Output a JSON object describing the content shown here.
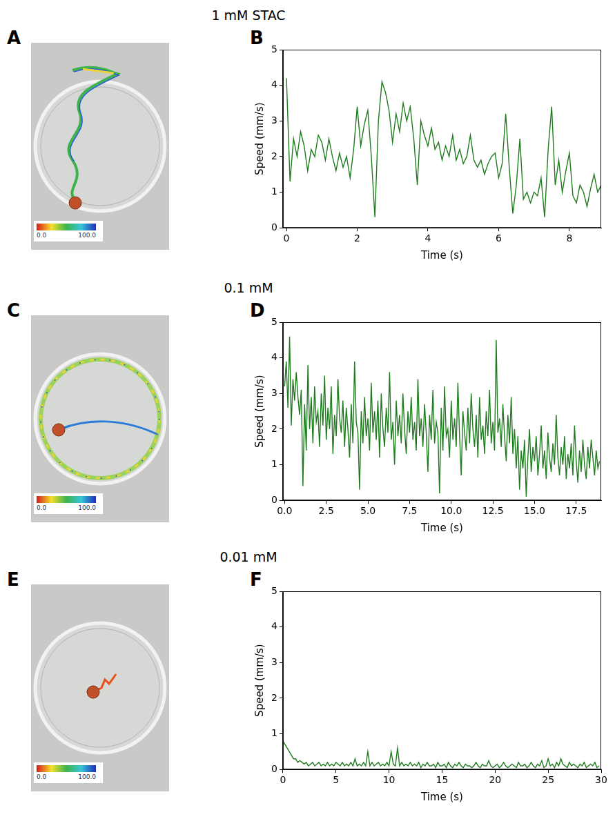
{
  "chart_data": [
    {
      "type": "line",
      "panel": "B",
      "title": "1 mM STAC",
      "x_label": "Time (s)",
      "y_label": "Speed (mm/s)",
      "color": "#1e7b1e",
      "grid": false,
      "xlim": [
        -0.1,
        8.9
      ],
      "xticks": [
        0,
        2,
        4,
        6,
        8
      ],
      "ylim": [
        0,
        5
      ],
      "yticks": [
        0,
        1,
        2,
        3,
        4,
        5
      ],
      "x": [
        0,
        0.1,
        0.2,
        0.3,
        0.4,
        0.5,
        0.6,
        0.7,
        0.8,
        0.9,
        1,
        1.1,
        1.2,
        1.3,
        1.4,
        1.5,
        1.6,
        1.7,
        1.8,
        1.9,
        2,
        2.1,
        2.2,
        2.3,
        2.4,
        2.5,
        2.6,
        2.7,
        2.8,
        2.9,
        3,
        3.1,
        3.2,
        3.3,
        3.4,
        3.5,
        3.6,
        3.7,
        3.8,
        3.9,
        4,
        4.1,
        4.2,
        4.3,
        4.4,
        4.5,
        4.6,
        4.7,
        4.8,
        4.9,
        5,
        5.1,
        5.2,
        5.3,
        5.4,
        5.5,
        5.6,
        5.7,
        5.8,
        5.9,
        6,
        6.1,
        6.2,
        6.3,
        6.4,
        6.5,
        6.6,
        6.7,
        6.8,
        6.9,
        7,
        7.1,
        7.2,
        7.3,
        7.4,
        7.5,
        7.6,
        7.7,
        7.8,
        7.9,
        8,
        8.1,
        8.2,
        8.3,
        8.4,
        8.5,
        8.6,
        8.7,
        8.8,
        8.9
      ],
      "values": [
        4.2,
        1.3,
        2.5,
        2.0,
        2.7,
        2.3,
        1.6,
        2.2,
        2.0,
        2.6,
        2.4,
        1.9,
        2.5,
        2.0,
        1.6,
        2.1,
        1.7,
        2.0,
        1.4,
        2.2,
        3.4,
        2.3,
        2.9,
        3.3,
        2.0,
        0.3,
        3.0,
        4.1,
        3.8,
        3.3,
        2.4,
        3.2,
        2.7,
        3.5,
        3.0,
        3.4,
        2.5,
        1.2,
        3.0,
        2.6,
        2.3,
        2.8,
        2.2,
        2.4,
        1.9,
        2.3,
        2.0,
        2.6,
        1.9,
        2.2,
        1.8,
        2.0,
        2.6,
        1.9,
        1.7,
        1.9,
        1.5,
        1.8,
        2.0,
        2.1,
        1.4,
        1.8,
        3.2,
        1.7,
        0.4,
        1.2,
        2.5,
        0.8,
        1.0,
        0.7,
        1.0,
        0.9,
        1.4,
        0.3,
        2.2,
        3.4,
        1.2,
        1.9,
        1.0,
        1.6,
        2.1,
        0.9,
        0.7,
        1.2,
        1.0,
        0.6,
        1.1,
        1.5,
        1.0,
        1.2
      ]
    },
    {
      "type": "line",
      "panel": "D",
      "title": "0.1 mM",
      "x_label": "Time (s)",
      "y_label": "Speed (mm/s)",
      "color": "#1e7b1e",
      "grid": false,
      "xlim": [
        -0.1,
        19
      ],
      "xticks": [
        {
          "value": 0,
          "label": "0.0"
        },
        2.5,
        {
          "value": 5,
          "label": "5.0"
        },
        7.5,
        {
          "value": 10,
          "label": "10.0"
        },
        12.5,
        {
          "value": 15,
          "label": "15.0"
        },
        17.5
      ],
      "ylim": [
        0,
        5
      ],
      "yticks": [
        0,
        1,
        2,
        3,
        4,
        5
      ],
      "x": [
        0,
        0.1,
        0.2,
        0.3,
        0.4,
        0.5,
        0.6,
        0.7,
        0.8,
        0.9,
        1,
        1.1,
        1.2,
        1.3,
        1.4,
        1.5,
        1.6,
        1.7,
        1.8,
        1.9,
        2,
        2.1,
        2.2,
        2.3,
        2.4,
        2.5,
        2.6,
        2.7,
        2.8,
        2.9,
        3,
        3.1,
        3.2,
        3.3,
        3.4,
        3.5,
        3.6,
        3.7,
        3.8,
        3.9,
        4,
        4.1,
        4.2,
        4.3,
        4.4,
        4.5,
        4.6,
        4.7,
        4.8,
        4.9,
        5,
        5.1,
        5.2,
        5.3,
        5.4,
        5.5,
        5.6,
        5.7,
        5.8,
        5.9,
        6,
        6.1,
        6.2,
        6.3,
        6.4,
        6.5,
        6.6,
        6.7,
        6.8,
        6.9,
        7,
        7.1,
        7.2,
        7.3,
        7.4,
        7.5,
        7.6,
        7.7,
        7.8,
        7.9,
        8,
        8.1,
        8.2,
        8.3,
        8.4,
        8.5,
        8.6,
        8.7,
        8.8,
        8.9,
        9,
        9.1,
        9.2,
        9.3,
        9.4,
        9.5,
        9.6,
        9.7,
        9.8,
        9.9,
        10,
        10.1,
        10.2,
        10.3,
        10.4,
        10.5,
        10.6,
        10.7,
        10.8,
        10.9,
        11,
        11.1,
        11.2,
        11.3,
        11.4,
        11.5,
        11.6,
        11.7,
        11.8,
        11.9,
        12,
        12.1,
        12.2,
        12.3,
        12.4,
        12.5,
        12.6,
        12.7,
        12.8,
        12.9,
        13,
        13.1,
        13.2,
        13.3,
        13.4,
        13.5,
        13.6,
        13.7,
        13.8,
        13.9,
        14,
        14.1,
        14.2,
        14.3,
        14.4,
        14.5,
        14.6,
        14.7,
        14.8,
        14.9,
        15,
        15.1,
        15.2,
        15.3,
        15.4,
        15.5,
        15.6,
        15.7,
        15.8,
        15.9,
        16,
        16.1,
        16.2,
        16.3,
        16.4,
        16.5,
        16.6,
        16.7,
        16.8,
        16.9,
        17,
        17.1,
        17.2,
        17.3,
        17.4,
        17.5,
        17.6,
        17.7,
        17.8,
        17.9,
        18,
        18.1,
        18.2,
        18.3,
        18.4,
        18.5,
        18.6,
        18.7,
        18.8,
        18.9
      ],
      "values": [
        3.2,
        3.9,
        2.6,
        4.6,
        2.1,
        3.4,
        2.8,
        3.6,
        2.9,
        2.4,
        3.1,
        0.4,
        2.7,
        1.4,
        3.8,
        2.0,
        2.9,
        1.6,
        3.2,
        2.2,
        2.5,
        1.5,
        3.0,
        2.1,
        3.5,
        1.7,
        2.6,
        2.0,
        3.2,
        1.3,
        2.4,
        1.8,
        3.4,
        2.3,
        1.9,
        2.8,
        1.5,
        2.6,
        2.0,
        1.2,
        2.7,
        1.6,
        3.9,
        2.2,
        1.9,
        0.3,
        2.5,
        1.6,
        2.9,
        1.8,
        2.3,
        1.4,
        3.3,
        1.9,
        2.5,
        1.7,
        2.8,
        1.2,
        3.0,
        2.0,
        1.5,
        2.6,
        1.9,
        3.6,
        1.7,
        2.2,
        1.0,
        2.8,
        1.8,
        2.4,
        1.6,
        3.0,
        2.0,
        1.3,
        2.5,
        1.9,
        2.9,
        1.7,
        2.2,
        1.4,
        3.4,
        1.8,
        2.3,
        1.5,
        2.7,
        1.9,
        0.8,
        2.4,
        1.7,
        3.1,
        1.6,
        2.2,
        1.9,
        0.2,
        2.6,
        1.4,
        3.2,
        1.8,
        2.0,
        1.2,
        2.8,
        1.7,
        2.3,
        1.5,
        3.3,
        1.8,
        0.7,
        2.5,
        1.9,
        1.4,
        2.6,
        1.6,
        3.0,
        2.0,
        1.5,
        2.4,
        1.2,
        2.9,
        1.7,
        2.1,
        1.3,
        2.5,
        1.8,
        3.1,
        1.6,
        2.2,
        1.4,
        4.5,
        1.9,
        2.3,
        1.5,
        2.7,
        1.8,
        1.1,
        2.4,
        1.6,
        2.9,
        1.3,
        2.0,
        0.9,
        1.8,
        0.3,
        1.4,
        0.9,
        1.7,
        0.1,
        1.2,
        2.0,
        0.8,
        1.5,
        1.1,
        1.8,
        0.7,
        1.3,
        2.1,
        0.9,
        1.4,
        0.6,
        1.9,
        1.2,
        0.8,
        1.6,
        1.0,
        2.4,
        1.2,
        0.7,
        1.5,
        1.0,
        1.8,
        0.6,
        1.3,
        0.9,
        1.6,
        0.7,
        2.1,
        1.1,
        0.5,
        1.4,
        0.8,
        1.7,
        1.0,
        0.6,
        1.5,
        0.9,
        1.7,
        1.2,
        0.7,
        1.4,
        0.9,
        1.1
      ]
    },
    {
      "type": "line",
      "panel": "F",
      "title": "0.01 mM",
      "x_label": "Time (s)",
      "y_label": "Speed (mm/s)",
      "color": "#1e7b1e",
      "grid": false,
      "xlim": [
        0,
        30
      ],
      "xticks": [
        0,
        5,
        10,
        15,
        20,
        25,
        30
      ],
      "ylim": [
        0,
        5
      ],
      "yticks": [
        0,
        1,
        2,
        3,
        4,
        5
      ],
      "x": [
        0,
        0.2,
        0.4,
        0.6,
        0.8,
        1,
        1.2,
        1.4,
        1.6,
        1.8,
        2,
        2.2,
        2.4,
        2.6,
        2.8,
        3,
        3.2,
        3.4,
        3.6,
        3.8,
        4,
        4.2,
        4.4,
        4.6,
        4.8,
        5,
        5.2,
        5.4,
        5.6,
        5.8,
        6,
        6.2,
        6.4,
        6.6,
        6.8,
        7,
        7.2,
        7.4,
        7.6,
        7.8,
        8,
        8.2,
        8.4,
        8.6,
        8.8,
        9,
        9.2,
        9.4,
        9.6,
        9.8,
        10,
        10.2,
        10.4,
        10.6,
        10.8,
        11,
        11.2,
        11.4,
        11.6,
        11.8,
        12,
        12.2,
        12.4,
        12.6,
        12.8,
        13,
        13.2,
        13.4,
        13.6,
        13.8,
        14,
        14.2,
        14.4,
        14.6,
        14.8,
        15,
        15.2,
        15.4,
        15.6,
        15.8,
        16,
        16.2,
        16.4,
        16.6,
        16.8,
        17,
        17.2,
        17.4,
        17.6,
        17.8,
        18,
        18.2,
        18.4,
        18.6,
        18.8,
        19,
        19.2,
        19.4,
        19.6,
        19.8,
        20,
        20.2,
        20.4,
        20.6,
        20.8,
        21,
        21.2,
        21.4,
        21.6,
        21.8,
        22,
        22.2,
        22.4,
        22.6,
        22.8,
        23,
        23.2,
        23.4,
        23.6,
        23.8,
        24,
        24.2,
        24.4,
        24.6,
        24.8,
        25,
        25.2,
        25.4,
        25.6,
        25.8,
        26,
        26.2,
        26.4,
        26.6,
        26.8,
        27,
        27.2,
        27.4,
        27.6,
        27.8,
        28,
        28.2,
        28.4,
        28.6,
        28.8,
        29,
        29.2,
        29.4,
        29.6,
        29.8
      ],
      "values": [
        0.8,
        0.7,
        0.6,
        0.5,
        0.4,
        0.3,
        0.3,
        0.2,
        0.25,
        0.2,
        0.15,
        0.2,
        0.1,
        0.15,
        0.2,
        0.1,
        0.15,
        0.2,
        0.1,
        0.15,
        0.1,
        0.2,
        0.1,
        0.15,
        0.1,
        0.2,
        0.15,
        0.1,
        0.2,
        0.1,
        0.15,
        0.1,
        0.2,
        0.1,
        0.3,
        0.1,
        0.15,
        0.1,
        0.2,
        0.1,
        0.5,
        0.1,
        0.2,
        0.1,
        0.15,
        0.2,
        0.1,
        0.15,
        0.1,
        0.2,
        0.1,
        0.5,
        0.15,
        0.1,
        0.6,
        0.1,
        0.2,
        0.1,
        0.15,
        0.1,
        0.2,
        0.1,
        0.15,
        0.1,
        0.2,
        0.05,
        0.15,
        0.1,
        0.2,
        0.1,
        0.1,
        0.15,
        0.05,
        0.2,
        0.1,
        0.1,
        0.15,
        0.05,
        0.2,
        0.1,
        0.05,
        0.15,
        0.1,
        0.2,
        0.1,
        0.05,
        0.15,
        0.1,
        0.1,
        0.05,
        0.1,
        0.2,
        0.1,
        0.05,
        0.15,
        0.1,
        0.1,
        0.25,
        0.1,
        0.05,
        0.1,
        0.15,
        0.05,
        0.1,
        0.2,
        0.1,
        0.05,
        0.1,
        0.15,
        0.1,
        0.05,
        0.2,
        0.1,
        0.1,
        0.15,
        0.05,
        0.1,
        0.2,
        0.1,
        0.05,
        0.15,
        0.1,
        0.25,
        0.05,
        0.1,
        0.3,
        0.1,
        0.15,
        0.05,
        0.2,
        0.1,
        0.3,
        0.15,
        0.1,
        0.05,
        0.2,
        0.1,
        0.15,
        0.1,
        0.05,
        0.15,
        0.1,
        0.2,
        0.05,
        0.1,
        0.15,
        0.1,
        0.2,
        0.05,
        0.1
      ]
    }
  ],
  "images": [
    {
      "panel": "A",
      "colorbar": {
        "range": [
          0,
          100
        ],
        "ticks": [
          {
            "value": 0,
            "label": "0.0"
          },
          {
            "value": 100,
            "label": "100.0"
          }
        ]
      }
    },
    {
      "panel": "C",
      "colorbar": {
        "range": [
          0,
          100
        ],
        "ticks": [
          {
            "value": 0,
            "label": "0.0"
          },
          {
            "value": 100,
            "label": "100.0"
          }
        ]
      }
    },
    {
      "panel": "E",
      "colorbar": {
        "range": [
          0,
          100
        ],
        "ticks": [
          {
            "value": 0,
            "label": "0.0"
          },
          {
            "value": 100,
            "label": "100.0"
          }
        ]
      }
    }
  ]
}
